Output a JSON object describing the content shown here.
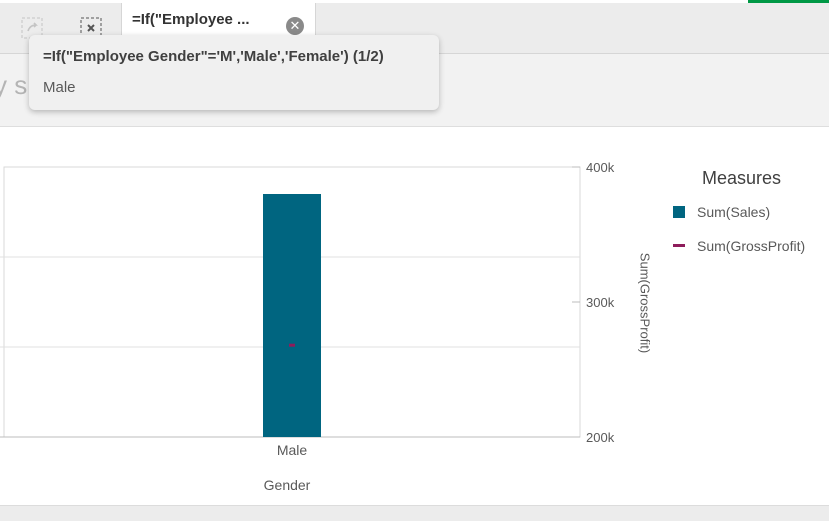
{
  "selections_bar": {
    "tab_title": "=If(\"Employee ...",
    "icons": [
      "step-forward-icon",
      "clear-selections-icon",
      "clear-field-icon"
    ]
  },
  "sheet": {
    "title_fragment": "y sh"
  },
  "tooltip": {
    "title": "=If(\"Employee Gender\"='M','Male','Female') (1/2)",
    "value": "Male"
  },
  "chart": {
    "legend_title": "Measures",
    "legend_items": [
      {
        "label": "Sum(Sales)",
        "color": "#006580",
        "kind": "bar"
      },
      {
        "label": "Sum(GrossProfit)",
        "color": "#8e1c5b",
        "kind": "line"
      }
    ],
    "right_axis_title": "Sum(GrossProfit)",
    "x_axis_title": "Gender"
  },
  "chart_data": {
    "type": "bar",
    "categories": [
      "Male"
    ],
    "series": [
      {
        "name": "Sum(Sales)",
        "type": "bar",
        "values": [
          null
        ],
        "color": "#006580"
      },
      {
        "name": "Sum(GrossProfit)",
        "type": "marker",
        "axis": "right",
        "values": [
          268000
        ],
        "color": "#8e1c5b"
      }
    ],
    "right_axis": {
      "ticks": [
        200000,
        300000,
        400000
      ],
      "tick_labels": [
        "200k",
        "300k",
        "400k"
      ],
      "ylim": [
        200000,
        400000
      ]
    },
    "left_axis_fill_fraction": 0.9,
    "xlabel": "Gender",
    "ylabel_right": "Sum(GrossProfit)",
    "legend": "right",
    "grid": true
  }
}
